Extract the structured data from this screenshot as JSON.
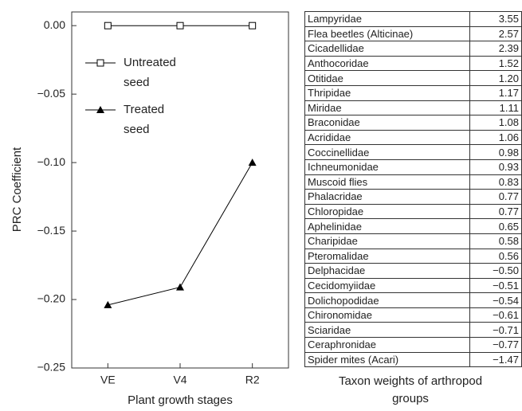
{
  "chart_data": {
    "type": "line",
    "x_label": "Plant growth stages",
    "y_label": "PRC Coefficient",
    "categories": [
      "VE",
      "V4",
      "R2"
    ],
    "series": [
      {
        "name": "Untreated seed",
        "color": "#000000",
        "marker": "square-open",
        "values": [
          0,
          0,
          0
        ]
      },
      {
        "name": "Treated seed",
        "color": "#000000",
        "marker": "triangle-filled",
        "values": [
          -0.204,
          -0.191,
          -0.1
        ]
      }
    ],
    "ylim": [
      -0.25,
      0.01
    ],
    "yticks": [
      {
        "value": 0,
        "label": "0.00"
      },
      {
        "value": -0.05,
        "label": "−0.05"
      },
      {
        "value": -0.1,
        "label": "−0.10"
      },
      {
        "value": -0.15,
        "label": "−0.15"
      },
      {
        "value": -0.2,
        "label": "−0.20"
      },
      {
        "value": -0.25,
        "label": "−0.25"
      }
    ],
    "legend": "upper left"
  },
  "table": {
    "caption": "Taxon weights of arthropod groups",
    "rows": [
      [
        "Lampyridae",
        "3.55"
      ],
      [
        "Flea beetles (Alticinae)",
        "2.57"
      ],
      [
        "Cicadellidae",
        "2.39"
      ],
      [
        "Anthocoridae",
        "1.52"
      ],
      [
        "Otitidae",
        "1.20"
      ],
      [
        "Thripidae",
        "1.17"
      ],
      [
        "Miridae",
        "1.11"
      ],
      [
        "Braconidae",
        "1.08"
      ],
      [
        "Acrididae",
        "1.06"
      ],
      [
        "Coccinellidae",
        "0.98"
      ],
      [
        "Ichneumonidae",
        "0.93"
      ],
      [
        "Muscoid flies",
        "0.83"
      ],
      [
        "Phalacridae",
        "0.77"
      ],
      [
        "Chloropidae",
        "0.77"
      ],
      [
        "Aphelinidae",
        "0.65"
      ],
      [
        "Charipidae",
        "0.58"
      ],
      [
        "Pteromalidae",
        "0.56"
      ],
      [
        "Delphacidae",
        "−0.50"
      ],
      [
        "Cecidomyiidae",
        "−0.51"
      ],
      [
        "Dolichopodidae",
        "−0.54"
      ],
      [
        "Chironomidae",
        "−0.61"
      ],
      [
        "Sciaridae",
        "−0.71"
      ],
      [
        "Ceraphronidae",
        "−0.77"
      ],
      [
        "Spider mites (Acari)",
        "−1.47"
      ]
    ]
  }
}
